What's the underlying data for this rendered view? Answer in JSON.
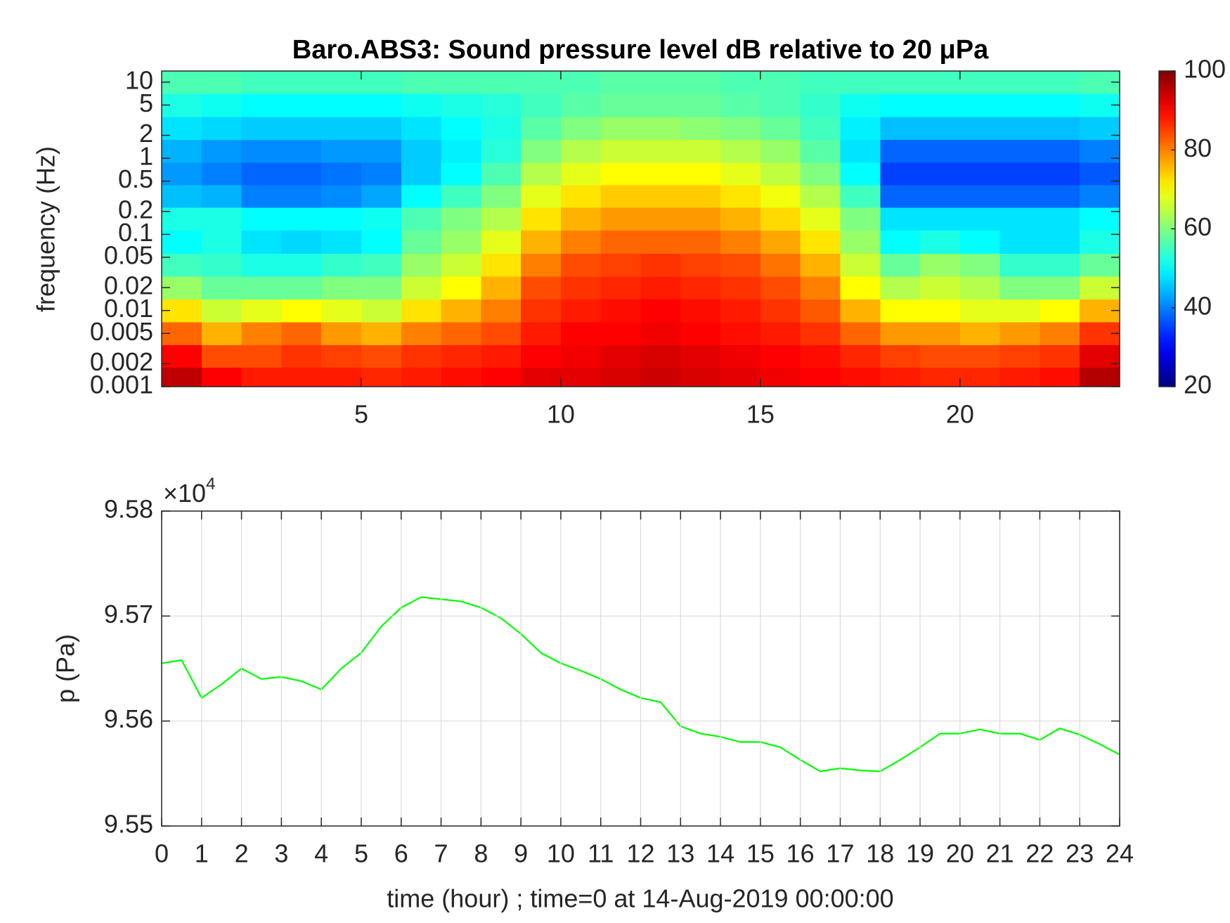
{
  "chart_data": [
    {
      "type": "heatmap",
      "title": "Baro.ABS3: Sound pressure level dB relative to 20 μPa",
      "ylabel": "frequency (Hz)",
      "x": [
        0.5,
        1.5,
        2.5,
        3.5,
        4.5,
        5.5,
        6.5,
        7.5,
        8.5,
        9.5,
        10.5,
        11.5,
        12.5,
        13.5,
        14.5,
        15.5,
        16.5,
        17.5,
        18.5,
        19.5,
        20.5,
        21.5,
        22.5,
        23.5
      ],
      "y": [
        0.0013,
        0.0025,
        0.005,
        0.01,
        0.02,
        0.04,
        0.08,
        0.16,
        0.32,
        0.63,
        1.25,
        2.5,
        5,
        10
      ],
      "values": [
        [
          95,
          90,
          82,
          72,
          62,
          55,
          50,
          52,
          45,
          42,
          44,
          48,
          52,
          56
        ],
        [
          90,
          84,
          76,
          66,
          58,
          54,
          52,
          52,
          44,
          40,
          42,
          47,
          51,
          56
        ],
        [
          88,
          84,
          80,
          68,
          58,
          52,
          48,
          50,
          40,
          38,
          41,
          46,
          50,
          55
        ],
        [
          88,
          86,
          82,
          70,
          58,
          52,
          47,
          50,
          40,
          38,
          41,
          46,
          50,
          55
        ],
        [
          88,
          85,
          78,
          68,
          60,
          54,
          48,
          50,
          41,
          39,
          42,
          46,
          50,
          55
        ],
        [
          87,
          84,
          76,
          66,
          60,
          55,
          50,
          51,
          43,
          40,
          42,
          46,
          50,
          55
        ],
        [
          88,
          86,
          80,
          72,
          66,
          62,
          58,
          56,
          50,
          46,
          46,
          48,
          51,
          56
        ],
        [
          89,
          87,
          82,
          76,
          70,
          66,
          62,
          60,
          55,
          50,
          49,
          50,
          52,
          56
        ],
        [
          90,
          88,
          84,
          80,
          76,
          72,
          68,
          64,
          60,
          56,
          53,
          52,
          53,
          56
        ],
        [
          92,
          90,
          88,
          86,
          84,
          80,
          76,
          72,
          68,
          64,
          60,
          57,
          55,
          56
        ],
        [
          92,
          91,
          90,
          88,
          86,
          84,
          80,
          76,
          72,
          68,
          64,
          60,
          57,
          56
        ],
        [
          93,
          92,
          90,
          89,
          87,
          85,
          82,
          78,
          74,
          70,
          66,
          62,
          58,
          57
        ],
        [
          94,
          93,
          91,
          90,
          88,
          86,
          82,
          78,
          74,
          70,
          66,
          62,
          58,
          57
        ],
        [
          93,
          92,
          90,
          89,
          87,
          85,
          82,
          78,
          74,
          70,
          66,
          61,
          58,
          57
        ],
        [
          92,
          91,
          89,
          88,
          86,
          84,
          80,
          76,
          72,
          68,
          64,
          60,
          57,
          56
        ],
        [
          91,
          90,
          88,
          86,
          84,
          81,
          77,
          73,
          69,
          65,
          62,
          58,
          56,
          56
        ],
        [
          90,
          89,
          86,
          83,
          80,
          76,
          72,
          68,
          64,
          60,
          57,
          55,
          54,
          55
        ],
        [
          89,
          87,
          82,
          76,
          70,
          66,
          62,
          60,
          55,
          50,
          48,
          49,
          51,
          55
        ],
        [
          88,
          85,
          78,
          70,
          64,
          58,
          50,
          48,
          38,
          35,
          38,
          45,
          50,
          55
        ],
        [
          87,
          84,
          78,
          70,
          66,
          62,
          52,
          48,
          38,
          35,
          38,
          45,
          50,
          55
        ],
        [
          87,
          84,
          76,
          68,
          64,
          60,
          50,
          48,
          38,
          35,
          38,
          45,
          50,
          55
        ],
        [
          88,
          85,
          78,
          68,
          60,
          54,
          48,
          48,
          38,
          35,
          38,
          45,
          50,
          55
        ],
        [
          89,
          86,
          80,
          70,
          60,
          54,
          48,
          48,
          38,
          35,
          38,
          45,
          50,
          55
        ],
        [
          96,
          92,
          86,
          76,
          66,
          58,
          52,
          50,
          40,
          37,
          40,
          46,
          51,
          56
        ]
      ],
      "xlim": [
        0,
        24
      ],
      "xticks": [
        5,
        10,
        15,
        20
      ],
      "ylim": [
        0.001,
        14
      ],
      "yticks": [
        0.001,
        0.002,
        0.005,
        0.01,
        0.02,
        0.05,
        0.1,
        0.2,
        0.5,
        1,
        2,
        5,
        10
      ],
      "ylog": true,
      "grid": false,
      "colormap": "jet",
      "clim": [
        20,
        100
      ],
      "cticks": [
        20,
        40,
        60,
        80,
        100
      ]
    },
    {
      "type": "line",
      "xlabel": "time (hour) ; time=0 at 14-Aug-2019 00:00:00",
      "ylabel": "p (Pa)",
      "y_multiplier": "×10",
      "y_exponent": "4",
      "color": "#00ff00",
      "x": [
        0,
        0.5,
        1,
        1.5,
        2,
        2.5,
        3,
        3.5,
        4,
        4.5,
        5,
        5.5,
        6,
        6.5,
        7,
        7.5,
        8,
        8.5,
        9,
        9.5,
        10,
        10.5,
        11,
        11.5,
        12,
        12.5,
        13,
        13.5,
        14,
        14.5,
        15,
        15.5,
        16,
        16.5,
        17,
        17.5,
        18,
        18.5,
        19,
        19.5,
        20,
        20.5,
        21,
        21.5,
        22,
        22.5,
        23,
        23.5,
        24
      ],
      "values": [
        9.5655,
        9.5658,
        9.5622,
        9.5635,
        9.565,
        9.564,
        9.5642,
        9.5638,
        9.563,
        9.565,
        9.5665,
        9.569,
        9.5708,
        9.5718,
        9.5716,
        9.5714,
        9.5708,
        9.5698,
        9.5683,
        9.5665,
        9.5655,
        9.5648,
        9.564,
        9.563,
        9.5622,
        9.5618,
        9.5595,
        9.5588,
        9.5585,
        9.558,
        9.558,
        9.5575,
        9.5563,
        9.5552,
        9.5555,
        9.5553,
        9.5552,
        9.5563,
        9.5575,
        9.5588,
        9.5588,
        9.5592,
        9.5588,
        9.5588,
        9.5582,
        9.5593,
        9.5587,
        9.5578,
        9.5568
      ],
      "xlim": [
        0,
        24
      ],
      "xticks": [
        0,
        1,
        2,
        3,
        4,
        5,
        6,
        7,
        8,
        9,
        10,
        11,
        12,
        13,
        14,
        15,
        16,
        17,
        18,
        19,
        20,
        21,
        22,
        23,
        24
      ],
      "ylim": [
        9.55,
        9.58
      ],
      "yticks": [
        9.55,
        9.56,
        9.57,
        9.58
      ],
      "grid": true
    }
  ]
}
